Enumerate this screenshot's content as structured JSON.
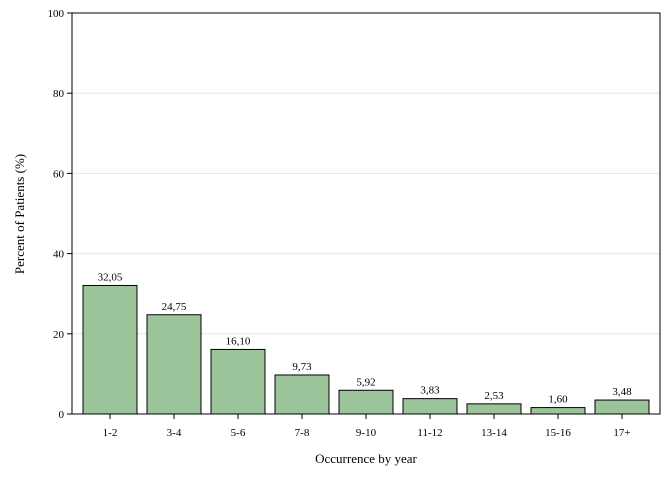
{
  "chart_data": {
    "type": "bar",
    "categories": [
      "1-2",
      "3-4",
      "5-6",
      "7-8",
      "9-10",
      "11-12",
      "13-14",
      "15-16",
      "17+"
    ],
    "values": [
      32.05,
      24.75,
      16.1,
      9.73,
      5.92,
      3.83,
      2.53,
      1.6,
      3.48
    ],
    "data_labels": [
      "32,05",
      "24,75",
      "16,10",
      "9,73",
      "5,92",
      "3,83",
      "2,53",
      "1,60",
      "3,48"
    ],
    "title": "",
    "xlabel": "Occurrence by year",
    "ylabel": "Percent of Patients (%)",
    "ylim": [
      0,
      100
    ],
    "yticks": [
      0,
      20,
      40,
      60,
      80,
      100
    ],
    "grid": true,
    "bar_color": "#9bc49b",
    "bar_edge_color": "#000000",
    "grid_color": "#e6e6e6"
  }
}
